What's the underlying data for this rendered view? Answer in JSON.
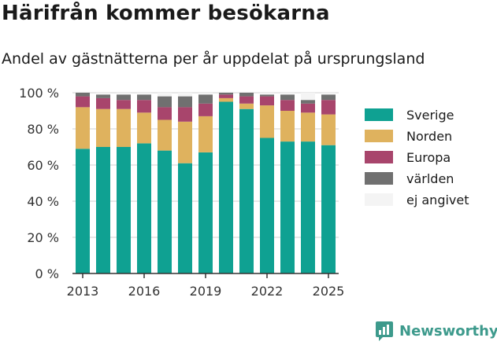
{
  "title": "Härifrån kommer besökarna",
  "subtitle": "Andel av gästnätterna per år uppdelat på ursprungsland",
  "brand": "Newsworthy",
  "colors": {
    "Sverige": "#0fa192",
    "Norden": "#dfb25e",
    "Europa": "#a8456c",
    "världen": "#707070",
    "ej angivet": "#f4f4f4",
    "grid": "#e1e1e1",
    "axis": "#333333",
    "brand": "#3d9a8c"
  },
  "chart_data": {
    "type": "bar",
    "stacked": true,
    "categories": [
      "2013",
      "2014",
      "2015",
      "2016",
      "2017",
      "2018",
      "2019",
      "2020",
      "2021",
      "2022",
      "2023",
      "2024",
      "2025"
    ],
    "x_tick_labels": [
      "2013",
      "2016",
      "2019",
      "2022",
      "2025"
    ],
    "y_ticks": [
      "0 %",
      "20 %",
      "40 %",
      "60 %",
      "80 %",
      "100 %"
    ],
    "ylim": [
      0,
      100
    ],
    "grid": true,
    "legend_position": "right",
    "series": [
      {
        "name": "Sverige",
        "values": [
          69,
          70,
          70,
          72,
          68,
          61,
          67,
          95,
          91,
          75,
          73,
          73,
          71
        ]
      },
      {
        "name": "Norden",
        "values": [
          23,
          21,
          21,
          17,
          17,
          23,
          20,
          2,
          3,
          18,
          17,
          16,
          17
        ]
      },
      {
        "name": "Europa",
        "values": [
          6,
          6,
          5,
          7,
          7,
          8,
          7,
          2,
          4,
          5,
          6,
          5,
          8
        ]
      },
      {
        "name": "världen",
        "values": [
          2,
          2,
          3,
          3,
          6,
          6,
          5,
          1,
          2,
          1,
          3,
          2,
          3
        ]
      },
      {
        "name": "ej angivet",
        "values": [
          0,
          1,
          1,
          1,
          2,
          2,
          1,
          0,
          0,
          1,
          1,
          4,
          1
        ]
      }
    ]
  }
}
